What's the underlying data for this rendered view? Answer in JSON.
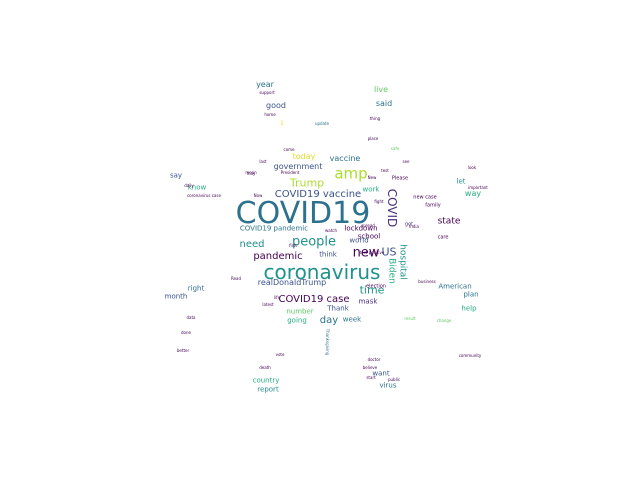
{
  "palette": {
    "dark_purple": "#440154",
    "purple": "#472f7d",
    "indigo": "#3b528b",
    "blue": "#2c728e",
    "teal": "#21918c",
    "green": "#28ae80",
    "lime": "#5ec962",
    "yellowgreen": "#addc30",
    "yellow": "#e0de2a"
  },
  "words": [
    "COVID19",
    "coronavirus",
    "amp",
    "new",
    "US",
    "people",
    "Trump",
    "COVID19 vaccine",
    "COVID",
    "pandemic",
    "time",
    "COVID19 case",
    "day",
    "need",
    "realDonaldTrump",
    "Biden",
    "hospital",
    "vaccine",
    "state",
    "government",
    "today",
    "year",
    "good",
    "said",
    "live",
    "know",
    "say",
    "work",
    "school",
    "lockdown",
    "world",
    "think",
    "COVID19 pandemic",
    "let",
    "way",
    "right",
    "month",
    "mask",
    "Thank",
    "week",
    "American",
    "plan",
    "help",
    "number",
    "going",
    "want",
    "virus",
    "country",
    "report",
    "death",
    "vote",
    "1",
    "coronavirus case",
    "election",
    "Please",
    "new case",
    "care",
    "got",
    "family",
    "last",
    "Read",
    "doctor",
    "public",
    "support",
    "home",
    "Thanksgiving",
    "President",
    "update",
    "latest",
    "test",
    "thing",
    "fight",
    "life",
    "first",
    "may",
    "look",
    "test positive",
    "New",
    "Now",
    "watch",
    "India",
    "business",
    "change",
    "safe",
    "result",
    "data",
    "done",
    "better",
    "community",
    "important",
    "believe",
    "start",
    "daily",
    "mean",
    "place",
    "come",
    "spread",
    "see"
  ]
}
